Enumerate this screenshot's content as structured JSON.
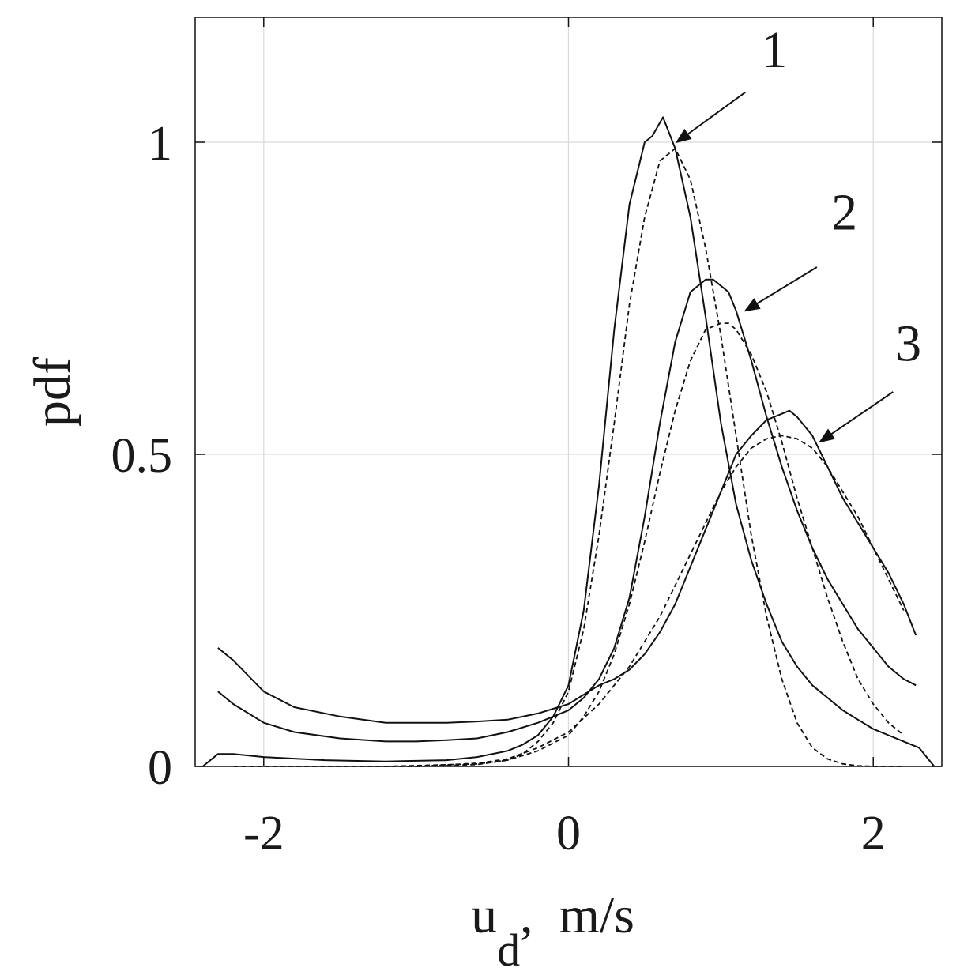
{
  "chart_data": {
    "type": "line",
    "title": "",
    "xlabel": "u",
    "xlabel_subscript": "d",
    "xlabel_suffix": ",  m/s",
    "ylabel": "pdf",
    "xlim": [
      -2.45,
      2.45
    ],
    "ylim": [
      0,
      1.2
    ],
    "xticks": [
      -2,
      0,
      2
    ],
    "xtick_labels": [
      "-2",
      "0",
      "2"
    ],
    "yticks": [
      0,
      0.5,
      1
    ],
    "ytick_labels": [
      "0",
      "0.5",
      "1"
    ],
    "grid": true,
    "legend": "none",
    "line_color": "#111111",
    "grid_color": "#d9d9d9",
    "series": [
      {
        "style": "solid",
        "x": [
          -2.4,
          -2.3,
          -2.2,
          -2.0,
          -1.6,
          -1.2,
          -0.8,
          -0.6,
          -0.4,
          -0.3,
          -0.2,
          -0.1,
          0.0,
          0.1,
          0.2,
          0.3,
          0.4,
          0.5,
          0.55,
          0.62,
          0.7,
          0.8,
          0.9,
          1.0,
          1.1,
          1.2,
          1.3,
          1.4,
          1.5,
          1.6,
          1.7,
          1.8,
          1.9,
          2.0,
          2.1,
          2.2,
          2.3,
          2.4
        ],
        "y": [
          0.0,
          0.02,
          0.02,
          0.015,
          0.01,
          0.008,
          0.01,
          0.015,
          0.025,
          0.035,
          0.05,
          0.08,
          0.13,
          0.25,
          0.45,
          0.7,
          0.9,
          1.0,
          1.01,
          1.04,
          0.99,
          0.88,
          0.72,
          0.55,
          0.42,
          0.33,
          0.26,
          0.2,
          0.16,
          0.13,
          0.11,
          0.09,
          0.075,
          0.06,
          0.05,
          0.04,
          0.03,
          0.0
        ]
      },
      {
        "style": "dashed",
        "x": [
          -2.2,
          -1.0,
          -0.6,
          -0.4,
          -0.3,
          -0.2,
          -0.1,
          0.0,
          0.1,
          0.2,
          0.3,
          0.4,
          0.5,
          0.6,
          0.7,
          0.8,
          0.9,
          1.0,
          1.1,
          1.2,
          1.3,
          1.4,
          1.5,
          1.6,
          1.7,
          1.8,
          1.9,
          2.0,
          2.1,
          2.2
        ],
        "y": [
          0.0,
          0.0,
          0.003,
          0.01,
          0.02,
          0.04,
          0.07,
          0.12,
          0.22,
          0.37,
          0.55,
          0.74,
          0.88,
          0.97,
          0.99,
          0.94,
          0.83,
          0.69,
          0.53,
          0.37,
          0.24,
          0.14,
          0.07,
          0.03,
          0.012,
          0.004,
          0.001,
          0.0,
          0.0,
          0.0
        ]
      },
      {
        "style": "solid",
        "x": [
          -2.3,
          -2.2,
          -2.0,
          -1.8,
          -1.5,
          -1.2,
          -1.0,
          -0.8,
          -0.6,
          -0.4,
          -0.2,
          0.0,
          0.1,
          0.2,
          0.3,
          0.4,
          0.5,
          0.6,
          0.7,
          0.8,
          0.9,
          0.95,
          1.0,
          1.05,
          1.1,
          1.2,
          1.3,
          1.4,
          1.5,
          1.6,
          1.7,
          1.8,
          1.9,
          2.0,
          2.1,
          2.2,
          2.28
        ],
        "y": [
          0.12,
          0.1,
          0.07,
          0.055,
          0.045,
          0.04,
          0.04,
          0.042,
          0.045,
          0.055,
          0.07,
          0.09,
          0.11,
          0.14,
          0.19,
          0.27,
          0.4,
          0.55,
          0.68,
          0.76,
          0.78,
          0.78,
          0.77,
          0.76,
          0.73,
          0.65,
          0.56,
          0.48,
          0.41,
          0.35,
          0.3,
          0.26,
          0.22,
          0.19,
          0.16,
          0.14,
          0.13
        ]
      },
      {
        "style": "dashed",
        "x": [
          -1.2,
          -0.6,
          -0.4,
          -0.2,
          0.0,
          0.1,
          0.2,
          0.3,
          0.4,
          0.5,
          0.6,
          0.7,
          0.8,
          0.9,
          1.0,
          1.05,
          1.1,
          1.2,
          1.3,
          1.4,
          1.5,
          1.6,
          1.7,
          1.8,
          1.9,
          2.0,
          2.1,
          2.2
        ],
        "y": [
          0.0,
          0.004,
          0.01,
          0.025,
          0.05,
          0.08,
          0.12,
          0.18,
          0.26,
          0.36,
          0.47,
          0.57,
          0.65,
          0.7,
          0.71,
          0.71,
          0.7,
          0.66,
          0.6,
          0.52,
          0.43,
          0.35,
          0.27,
          0.2,
          0.14,
          0.1,
          0.07,
          0.05
        ]
      },
      {
        "style": "solid",
        "x": [
          -2.3,
          -2.2,
          -2.0,
          -1.8,
          -1.5,
          -1.2,
          -1.0,
          -0.8,
          -0.6,
          -0.4,
          -0.2,
          0.0,
          0.1,
          0.2,
          0.3,
          0.4,
          0.5,
          0.6,
          0.7,
          0.8,
          0.9,
          1.0,
          1.1,
          1.2,
          1.3,
          1.4,
          1.45,
          1.5,
          1.6,
          1.7,
          1.8,
          1.9,
          2.0,
          2.1,
          2.2,
          2.28
        ],
        "y": [
          0.19,
          0.17,
          0.12,
          0.095,
          0.08,
          0.07,
          0.07,
          0.07,
          0.072,
          0.075,
          0.085,
          0.1,
          0.115,
          0.13,
          0.14,
          0.155,
          0.18,
          0.215,
          0.26,
          0.32,
          0.38,
          0.44,
          0.5,
          0.53,
          0.555,
          0.565,
          0.57,
          0.56,
          0.53,
          0.48,
          0.43,
          0.39,
          0.35,
          0.31,
          0.26,
          0.21
        ]
      },
      {
        "style": "dashed",
        "x": [
          -1.0,
          -0.6,
          -0.4,
          -0.2,
          0.0,
          0.2,
          0.4,
          0.6,
          0.7,
          0.8,
          0.9,
          1.0,
          1.1,
          1.2,
          1.3,
          1.4,
          1.5,
          1.6,
          1.7,
          1.8,
          1.9,
          2.0,
          2.1,
          2.2
        ],
        "y": [
          0.0,
          0.005,
          0.012,
          0.03,
          0.055,
          0.1,
          0.16,
          0.24,
          0.29,
          0.34,
          0.39,
          0.44,
          0.48,
          0.51,
          0.525,
          0.53,
          0.525,
          0.51,
          0.48,
          0.44,
          0.4,
          0.35,
          0.3,
          0.25
        ]
      }
    ],
    "annotations": [
      {
        "text": "1",
        "x": 1.35,
        "y": 1.12,
        "arrow_from": [
          1.16,
          1.08
        ],
        "arrow_to": [
          0.71,
          1.0
        ]
      },
      {
        "text": "2",
        "x": 1.81,
        "y": 0.86,
        "arrow_from": [
          1.63,
          0.8
        ],
        "arrow_to": [
          1.16,
          0.73
        ]
      },
      {
        "text": "3",
        "x": 2.23,
        "y": 0.65,
        "arrow_from": [
          2.13,
          0.6
        ],
        "arrow_to": [
          1.65,
          0.52
        ]
      }
    ]
  }
}
